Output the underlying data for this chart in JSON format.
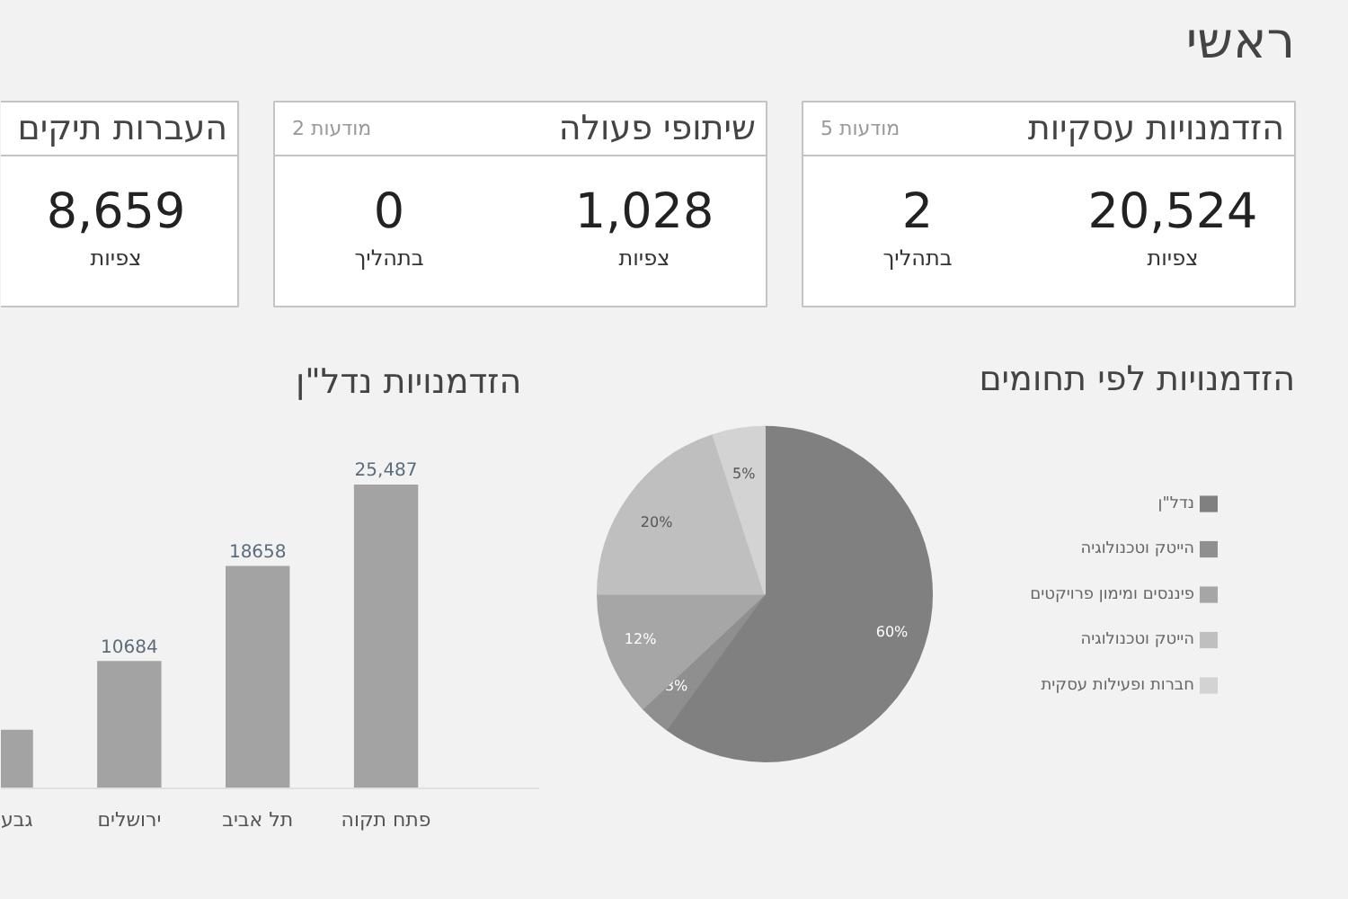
{
  "chart_data": [
    {
      "type": "other",
      "title": "ראשי"
    },
    {
      "type": "other",
      "title": "הזדמנויות עסקיות",
      "subtitle": "5 מודעות",
      "annotations": [
        "20,524",
        "צפיות",
        "2",
        "בתהליך"
      ]
    },
    {
      "type": "other",
      "title": "שיתופי פעולה",
      "subtitle": "2 מודעות",
      "annotations": [
        "1,028",
        "צפיות",
        "0",
        "בתהליך"
      ]
    },
    {
      "type": "other",
      "title": "העברות תיקים",
      "annotations": [
        "8,659",
        "צפיות"
      ]
    },
    {
      "type": "pie",
      "title": "הזדמנויות לפי תחומים",
      "categories": [
        "נדל\"ן",
        "הייטק וטכנולוגיה",
        "פיננסים ומימון פרויקטים",
        "הייטק וטכנולוגיה",
        "חברות ופעילות עסקית"
      ],
      "values": [
        60,
        3,
        12,
        20,
        5
      ],
      "colors": [
        "#808080",
        "#8f8f8f",
        "#a6a6a6",
        "#bfbfbf",
        "#d3d3d3"
      ],
      "value_labels": [
        "60%",
        "3%",
        "12%",
        "20%",
        "5%"
      ],
      "legend": "right"
    },
    {
      "type": "bar",
      "title": "הזדמנויות  נדל\"ן",
      "relative": false,
      "categories": [
        "גבע",
        "ירושלים",
        "תל אביב",
        "פתח תקוה"
      ],
      "values": [
        4925,
        10684,
        18658,
        25487
      ],
      "value_labels": [
        null,
        "10684",
        "18658",
        "25,487"
      ],
      "color": "#a3a3a3",
      "grid": false
    }
  ]
}
